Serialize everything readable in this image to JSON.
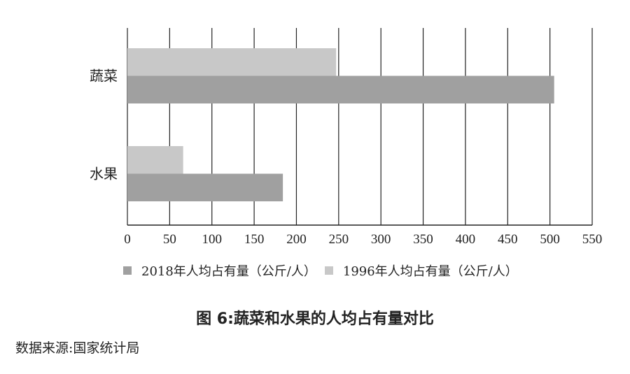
{
  "chart_data": {
    "type": "bar",
    "orientation": "horizontal",
    "categories": [
      "蔬菜",
      "水果"
    ],
    "series": [
      {
        "name": "2018年人均占有量（公斤/人）",
        "values": [
          505,
          184
        ],
        "color": "#a0a0a0"
      },
      {
        "name": "1996年人均占有量（公斤/人）",
        "values": [
          247,
          66
        ],
        "color": "#c8c8c8"
      }
    ],
    "xlim": [
      0,
      550
    ],
    "xticks": [
      0,
      50,
      100,
      150,
      200,
      250,
      300,
      350,
      400,
      450,
      500,
      550
    ],
    "grid": true,
    "legend_position": "bottom",
    "title": "图 6:蔬菜和水果的人均占有量对比",
    "source": "数据来源:国家统计局"
  }
}
